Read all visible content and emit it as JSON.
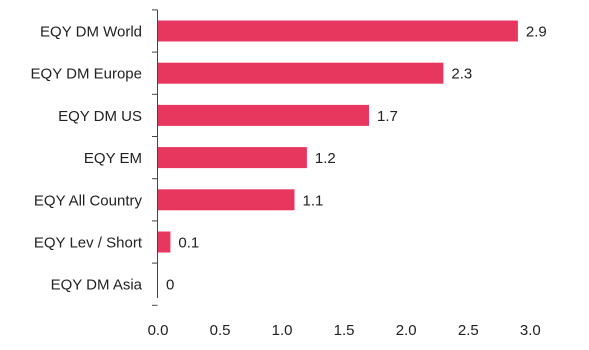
{
  "chart_data": {
    "type": "bar",
    "orientation": "horizontal",
    "categories": [
      "EQY DM World",
      "EQY DM Europe",
      "EQY DM US",
      "EQY EM",
      "EQY All Country",
      "EQY Lev / Short",
      "EQY DM Asia"
    ],
    "values": [
      2.9,
      2.3,
      1.7,
      1.2,
      1.1,
      0.1,
      0
    ],
    "value_labels": [
      "2.9",
      "2.3",
      "1.7",
      "1.2",
      "1.1",
      "0.1",
      "0"
    ],
    "x_ticks": [
      "0.0",
      "0.5",
      "1.0",
      "1.5",
      "2.0",
      "2.5",
      "3.0"
    ],
    "xlim": [
      0,
      3.4
    ],
    "title": "",
    "xlabel": "",
    "ylabel": "",
    "grid": false,
    "legend": "none",
    "bar_color": "#e8375f",
    "axis_color": "#444444"
  }
}
